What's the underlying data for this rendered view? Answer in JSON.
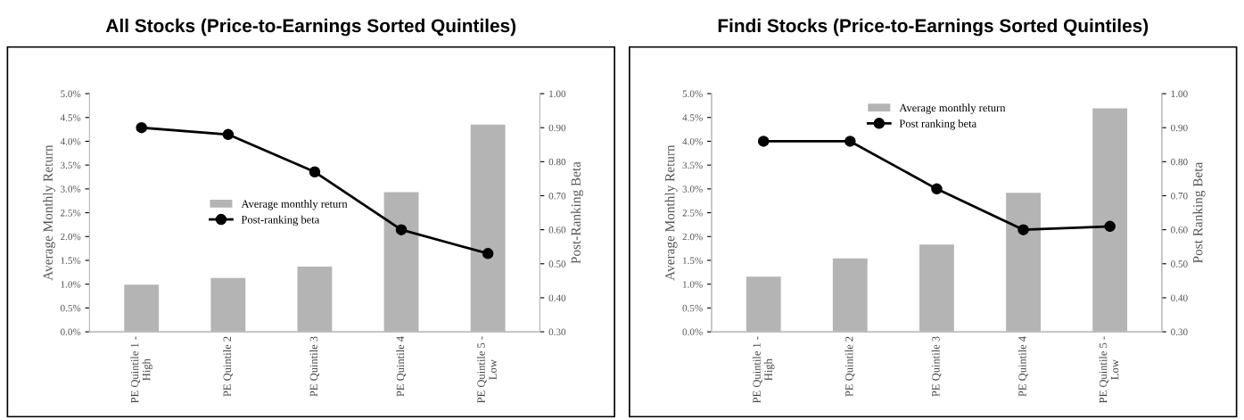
{
  "chart_data": [
    {
      "type": "bar",
      "title": "All Stocks (Price-to-Earnings Sorted Quintiles)",
      "ylabel": "Average Monthly Return",
      "y2label": "Post-Ranking Beta",
      "categories": [
        "PE Quintile 1 -\nHigh",
        "PE Quintile 2",
        "PE Quintile 3",
        "PE Quintile 4",
        "PE Quintile 5 -\nLow"
      ],
      "series": [
        {
          "name": "Average monthly return",
          "color": "#b4b4b4",
          "values": [
            0.99,
            1.13,
            1.37,
            2.93,
            4.35
          ]
        },
        {
          "name": "Post-ranking beta",
          "type": "line",
          "axis": "y2",
          "color": "#000000",
          "values": [
            0.9,
            0.88,
            0.77,
            0.6,
            0.53
          ]
        }
      ],
      "ylim": [
        0,
        5.0
      ],
      "yticks": [
        {
          "value": 0,
          "label": "0.0%"
        },
        {
          "value": 0.5,
          "label": "0.5%"
        },
        {
          "value": 1.0,
          "label": "1.0%"
        },
        {
          "value": 1.5,
          "label": "1.5%"
        },
        {
          "value": 2.0,
          "label": "2.0%"
        },
        {
          "value": 2.5,
          "label": "2.5%"
        },
        {
          "value": 3.0,
          "label": "3.0%"
        },
        {
          "value": 3.5,
          "label": "3.5%"
        },
        {
          "value": 4.0,
          "label": "4.0%"
        },
        {
          "value": 4.5,
          "label": "4.5%"
        },
        {
          "value": 5.0,
          "label": "5.0%"
        }
      ],
      "y2lim": [
        0.3,
        1.0
      ],
      "y2ticks": [
        {
          "value": 0.3,
          "label": "0.30"
        },
        {
          "value": 0.4,
          "label": "0.40"
        },
        {
          "value": 0.5,
          "label": "0.50"
        },
        {
          "value": 0.6,
          "label": "0.60"
        },
        {
          "value": 0.7,
          "label": "0.70"
        },
        {
          "value": 0.8,
          "label": "0.80"
        },
        {
          "value": 0.9,
          "label": "0.90"
        },
        {
          "value": 1.0,
          "label": "1.00"
        }
      ],
      "marker": "circle",
      "legend": "center",
      "grid": false
    },
    {
      "type": "bar",
      "title": "Findi Stocks (Price-to-Earnings Sorted Quintiles)",
      "ylabel": "Average Monthly Return",
      "y2label": "Post Ranking Beta",
      "categories": [
        "PE Quintile 1 -\nHigh",
        "PE Quintile 2",
        "PE Quintile 3",
        "PE Quintile 4",
        "PE Quintile 5 -\nLow"
      ],
      "series": [
        {
          "name": "Average monthly return",
          "color": "#b4b4b4",
          "values": [
            1.16,
            1.54,
            1.83,
            2.92,
            4.69
          ]
        },
        {
          "name": "Post ranking beta",
          "type": "line",
          "axis": "y2",
          "color": "#000000",
          "values": [
            0.86,
            0.86,
            0.72,
            0.6,
            0.61
          ]
        }
      ],
      "ylim": [
        0,
        5.0
      ],
      "yticks": [
        {
          "value": 0,
          "label": "0.0%"
        },
        {
          "value": 0.5,
          "label": "0.5%"
        },
        {
          "value": 1.0,
          "label": "1.0%"
        },
        {
          "value": 1.5,
          "label": "1.5%"
        },
        {
          "value": 2.0,
          "label": "2.0%"
        },
        {
          "value": 2.5,
          "label": "2.5%"
        },
        {
          "value": 3.0,
          "label": "3.0%"
        },
        {
          "value": 3.5,
          "label": "3.5%"
        },
        {
          "value": 4.0,
          "label": "4.0%"
        },
        {
          "value": 4.5,
          "label": "4.5%"
        },
        {
          "value": 5.0,
          "label": "5.0%"
        }
      ],
      "y2lim": [
        0.3,
        1.0
      ],
      "y2ticks": [
        {
          "value": 0.3,
          "label": "0.30"
        },
        {
          "value": 0.4,
          "label": "0.40"
        },
        {
          "value": 0.5,
          "label": "0.50"
        },
        {
          "value": 0.6,
          "label": "0.60"
        },
        {
          "value": 0.7,
          "label": "0.70"
        },
        {
          "value": 0.8,
          "label": "0.80"
        },
        {
          "value": 0.9,
          "label": "0.90"
        },
        {
          "value": 1.0,
          "label": "1.00"
        }
      ],
      "marker": "circle",
      "legend": "top",
      "grid": false
    }
  ]
}
